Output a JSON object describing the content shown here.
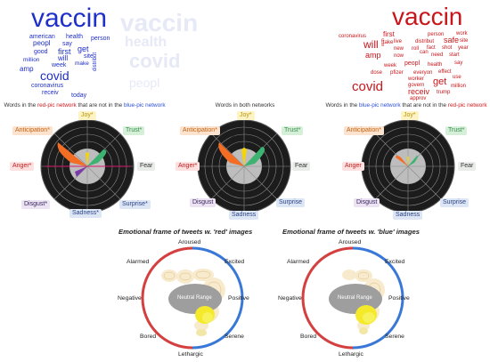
{
  "colors": {
    "red_words": "#c8161a",
    "blue_words": "#1f2fc9",
    "ghost_words": "#e6e9f6",
    "radar_bg": "#222222",
    "fear_green": "#3cb371",
    "anger_orange": "#f36d25",
    "joy_yellow": "#f2d30c",
    "frame_red": "#d43f3f",
    "frame_blue": "#3a78d8"
  },
  "wordclouds": {
    "blue": [
      "vaccin",
      "american",
      "health",
      "person",
      "peopl",
      "say",
      "good",
      "first",
      "get",
      "site",
      "will",
      "million",
      "week",
      "make",
      "amp",
      "distribut",
      "covid",
      "coronavirus",
      "receiv",
      "today"
    ],
    "ghost": [
      "vaccin",
      "health",
      "covid",
      "peopl"
    ],
    "red": [
      "vaccin",
      "coronavirus",
      "first",
      "person",
      "work",
      "will",
      "take",
      "live",
      "distribut",
      "safe",
      "site",
      "amp",
      "new",
      "roll",
      "fact",
      "shot",
      "year",
      "now",
      "can",
      "need",
      "start",
      "week",
      "peopl",
      "health",
      "say",
      "dose",
      "pfizer",
      "everyon",
      "effect",
      "worker",
      "use",
      "covid",
      "govern",
      "get",
      "million",
      "receiv",
      "trump",
      "approv",
      "arm"
    ]
  },
  "captions": {
    "left": {
      "pre": "Words in the ",
      "hl1": "red-pic network",
      "mid": " that are not in the ",
      "hl2": "blue-pic network"
    },
    "center": "Words in both networks",
    "right": {
      "pre": "Words in the ",
      "hl1": "blue-pic network",
      "mid": " that are not in the ",
      "hl2": "red-pic network"
    }
  },
  "radar_labels": {
    "left": {
      "joy": "Joy*",
      "trust": "Trust*",
      "anticipation": "Anticipation*",
      "anger": "Anger*",
      "fear": "Fear",
      "disgust": "Disgust*",
      "surprise": "Surprise*",
      "sadness": "Sadness*"
    },
    "center": {
      "joy": "Joy*",
      "trust": "Trust*",
      "anticipation": "Anticipation*",
      "anger": "Anger*",
      "fear": "Fear",
      "disgust": "Disgust",
      "surprise": "Surprise",
      "sadness": "Sadness"
    },
    "right": {
      "joy": "Joy*",
      "trust": "Trust*",
      "anticipation": "Anticipation*",
      "anger": "Anger",
      "fear": "Fear",
      "disgust": "Disgust",
      "surprise": "Surprise",
      "sadness": "Sadness"
    }
  },
  "frames": {
    "red": {
      "title": "Emotional frame of tweets w. 'red' images",
      "aroused": "Aroused",
      "alarmed": "Alarmed",
      "excited": "Excited",
      "negative": "Negative",
      "positive": "Positive",
      "bored": "Bored",
      "serene": "Serene",
      "lethargic": "Lethargic",
      "neutral": "Neutral Range"
    },
    "blue": {
      "title": "Emotional frame of tweets w. 'blue' images",
      "aroused": "Aroused",
      "alarmed": "Alarmed",
      "excited": "Excited",
      "negative": "Negative",
      "positive": "Positive",
      "bored": "Bored",
      "serene": "Serene",
      "lethargic": "Lethargic",
      "neutral": "Neutral Range"
    }
  }
}
